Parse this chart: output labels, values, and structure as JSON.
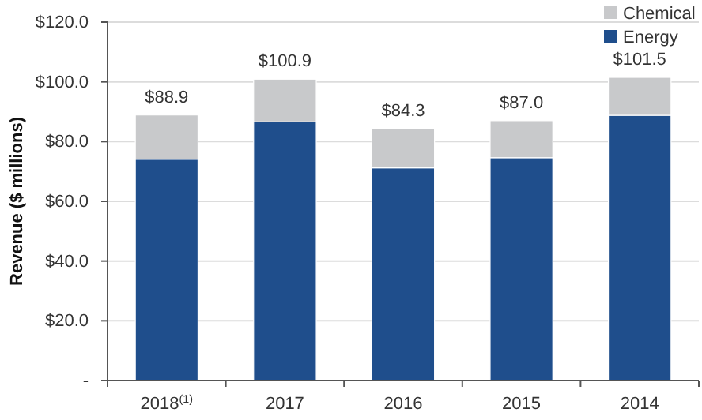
{
  "chart_data": {
    "type": "bar",
    "stacked": true,
    "ylabel": "Revenue ($ millions)",
    "categories": [
      "2018$^{(1)}$",
      "2017",
      "2016",
      "2015",
      "2014"
    ],
    "series": [
      {
        "name": "Energy",
        "color": "#1f4e8c",
        "values": [
          74.1,
          86.6,
          71.2,
          74.6,
          88.8
        ]
      },
      {
        "name": "Chemical",
        "color": "#c8c9cb",
        "values": [
          14.8,
          14.3,
          13.1,
          12.4,
          12.7
        ]
      }
    ],
    "totals": [
      "$88.9",
      "$100.9",
      "$84.3",
      "$87.0",
      "$101.5"
    ],
    "ylim": [
      0,
      120
    ],
    "yticks": [
      {
        "value": 0,
        "label": "-"
      },
      {
        "value": 20,
        "label": "$20.0"
      },
      {
        "value": 40,
        "label": "$40.0"
      },
      {
        "value": 60,
        "label": "$60.0"
      },
      {
        "value": 80,
        "label": "$80.0"
      },
      {
        "value": 100,
        "label": "$100.0"
      },
      {
        "value": 120,
        "label": "$120.0"
      }
    ],
    "grid": "y",
    "legend": "top right"
  }
}
